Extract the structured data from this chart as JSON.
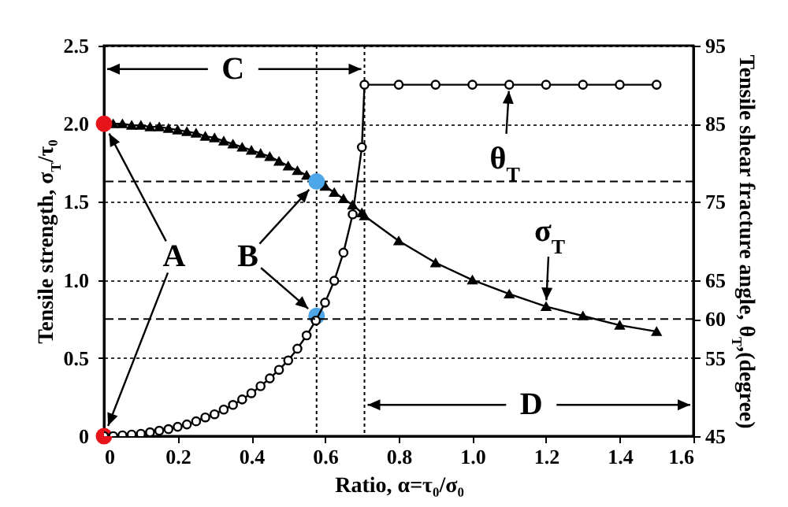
{
  "chart_data": {
    "type": "line",
    "xlabel": "Ratio, α=τ₀/σ₀",
    "ylabel": "Tensile strength, σ$_{T}$/τ₀",
    "y2label": "Tensile shear fracture angle, θ$_{T}$,(degree)",
    "xlim": [
      0,
      1.6
    ],
    "xticks": [
      0,
      0.2,
      0.4,
      0.6,
      0.8,
      {
        "value": 1,
        "label": "1.0"
      },
      1.2,
      1.4,
      1.6
    ],
    "ylim": [
      0,
      2.5
    ],
    "yticks": [
      0,
      0.5,
      {
        "value": 1,
        "label": "1.0"
      },
      1.5,
      {
        "value": 2,
        "label": "2.0"
      },
      2.5
    ],
    "y2lim": [
      45,
      95
    ],
    "y2ticks": [
      45,
      55,
      60,
      65,
      75,
      85,
      95
    ],
    "grid": "y",
    "series": [
      {
        "type": "line",
        "marker": "triangle",
        "color": "#000000",
        "x": [
          0,
          0.025,
          0.05,
          0.075,
          0.1,
          0.125,
          0.15,
          0.175,
          0.2,
          0.225,
          0.25,
          0.275,
          0.3,
          0.325,
          0.35,
          0.375,
          0.4,
          0.425,
          0.45,
          0.475,
          0.5,
          0.525,
          0.55,
          0.575,
          0.6,
          0.625,
          0.65,
          0.675,
          0.7,
          0.707,
          0.8,
          0.9,
          1,
          1.1,
          1.2,
          1.3,
          1.4,
          1.5
        ],
        "values": [
          2,
          2,
          2,
          1.99,
          1.99,
          1.98,
          1.98,
          1.97,
          1.96,
          1.95,
          1.94,
          1.92,
          1.91,
          1.89,
          1.87,
          1.85,
          1.83,
          1.81,
          1.79,
          1.76,
          1.73,
          1.7,
          1.67,
          1.64,
          1.6,
          1.56,
          1.52,
          1.48,
          1.43,
          1.41,
          1.25,
          1.11,
          1,
          0.91,
          0.83,
          0.77,
          0.71,
          0.67
        ]
      },
      {
        "type": "line",
        "marker": "circle",
        "axis": "y2",
        "color": "#000000",
        "x": [
          0,
          0.025,
          0.05,
          0.075,
          0.1,
          0.125,
          0.15,
          0.175,
          0.2,
          0.225,
          0.25,
          0.275,
          0.3,
          0.325,
          0.35,
          0.375,
          0.4,
          0.425,
          0.45,
          0.475,
          0.5,
          0.525,
          0.55,
          0.575,
          0.6,
          0.625,
          0.65,
          0.675,
          0.7,
          0.707,
          0.8,
          0.9,
          1,
          1.1,
          1.2,
          1.3,
          1.4,
          1.5
        ],
        "values": [
          45,
          45,
          45.1,
          45.2,
          45.3,
          45.5,
          45.7,
          45.9,
          46.2,
          46.5,
          46.9,
          47.4,
          47.8,
          48.4,
          49,
          49.7,
          50.5,
          51.4,
          52.4,
          53.5,
          54.7,
          56.2,
          57.9,
          59.8,
          62.1,
          64.9,
          68.5,
          73.4,
          82,
          90,
          90,
          90,
          90,
          90,
          90,
          90,
          90,
          90
        ]
      },
      {
        "type": "scatter",
        "marker": "circle",
        "color": "#e8141b",
        "x": [
          0,
          0
        ],
        "values": [
          2,
          0
        ]
      },
      {
        "type": "scatter",
        "marker": "circle",
        "color": "#4da6e8",
        "x": [
          0.577,
          0.577
        ],
        "values": [
          1.63,
          0.77
        ]
      }
    ],
    "ref_lines": [
      {
        "axis": "x",
        "value": 0.577,
        "line_style": "dotted"
      },
      {
        "axis": "x",
        "value": 0.707,
        "line_style": "dotted"
      },
      {
        "axis": "y",
        "value": 1.63,
        "line_style": "dashed"
      },
      {
        "axis": "y2",
        "value": 60,
        "line_style": "dashed"
      }
    ],
    "annotations": [
      {
        "text": "A",
        "x": 0,
        "y": 2
      },
      {
        "text": "B",
        "x": 0.577,
        "y": 1.63
      },
      {
        "text": "C",
        "x": 0.707,
        "y": 2.35
      },
      "D",
      {
        "text": "θ$_{T}$",
        "x": 1.1,
        "y": 2.25
      },
      {
        "text": "σ$_{T}$",
        "x": 1.2,
        "y": 0.83
      }
    ]
  }
}
